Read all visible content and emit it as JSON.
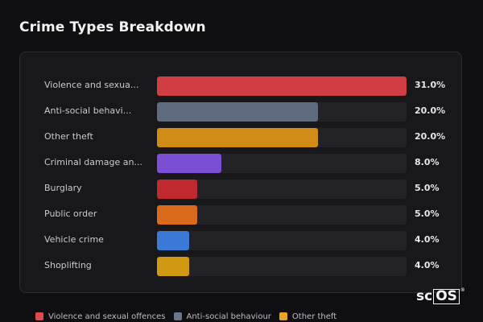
{
  "title": "Crime Types Breakdown",
  "brand": {
    "prefix": "sc",
    "boxed": "OS",
    "reg": "®"
  },
  "chart_data": {
    "type": "bar",
    "orientation": "horizontal",
    "xlim": [
      0,
      31
    ],
    "items": [
      {
        "label": "Violence and sexua...",
        "value": 31.0,
        "value_label": "31.0%",
        "color": "#d03e44"
      },
      {
        "label": "Anti-social behavi...",
        "value": 20.0,
        "value_label": "20.0%",
        "color": "#5e6b7f"
      },
      {
        "label": "Other theft",
        "value": 20.0,
        "value_label": "20.0%",
        "color": "#d18c17"
      },
      {
        "label": "Criminal damage an...",
        "value": 8.0,
        "value_label": "8.0%",
        "color": "#7a4fd3"
      },
      {
        "label": "Burglary",
        "value": 5.0,
        "value_label": "5.0%",
        "color": "#c02a2e"
      },
      {
        "label": "Public order",
        "value": 5.0,
        "value_label": "5.0%",
        "color": "#da6b1c"
      },
      {
        "label": "Vehicle crime",
        "value": 4.0,
        "value_label": "4.0%",
        "color": "#3a79d6"
      },
      {
        "label": "Shoplifting",
        "value": 4.0,
        "value_label": "4.0%",
        "color": "#cf9a12"
      }
    ],
    "legend": [
      {
        "label": "Violence and sexual offences",
        "color": "#e0484e"
      },
      {
        "label": "Anti-social behaviour",
        "color": "#6b778a"
      },
      {
        "label": "Other theft",
        "color": "#e9a321"
      }
    ]
  }
}
